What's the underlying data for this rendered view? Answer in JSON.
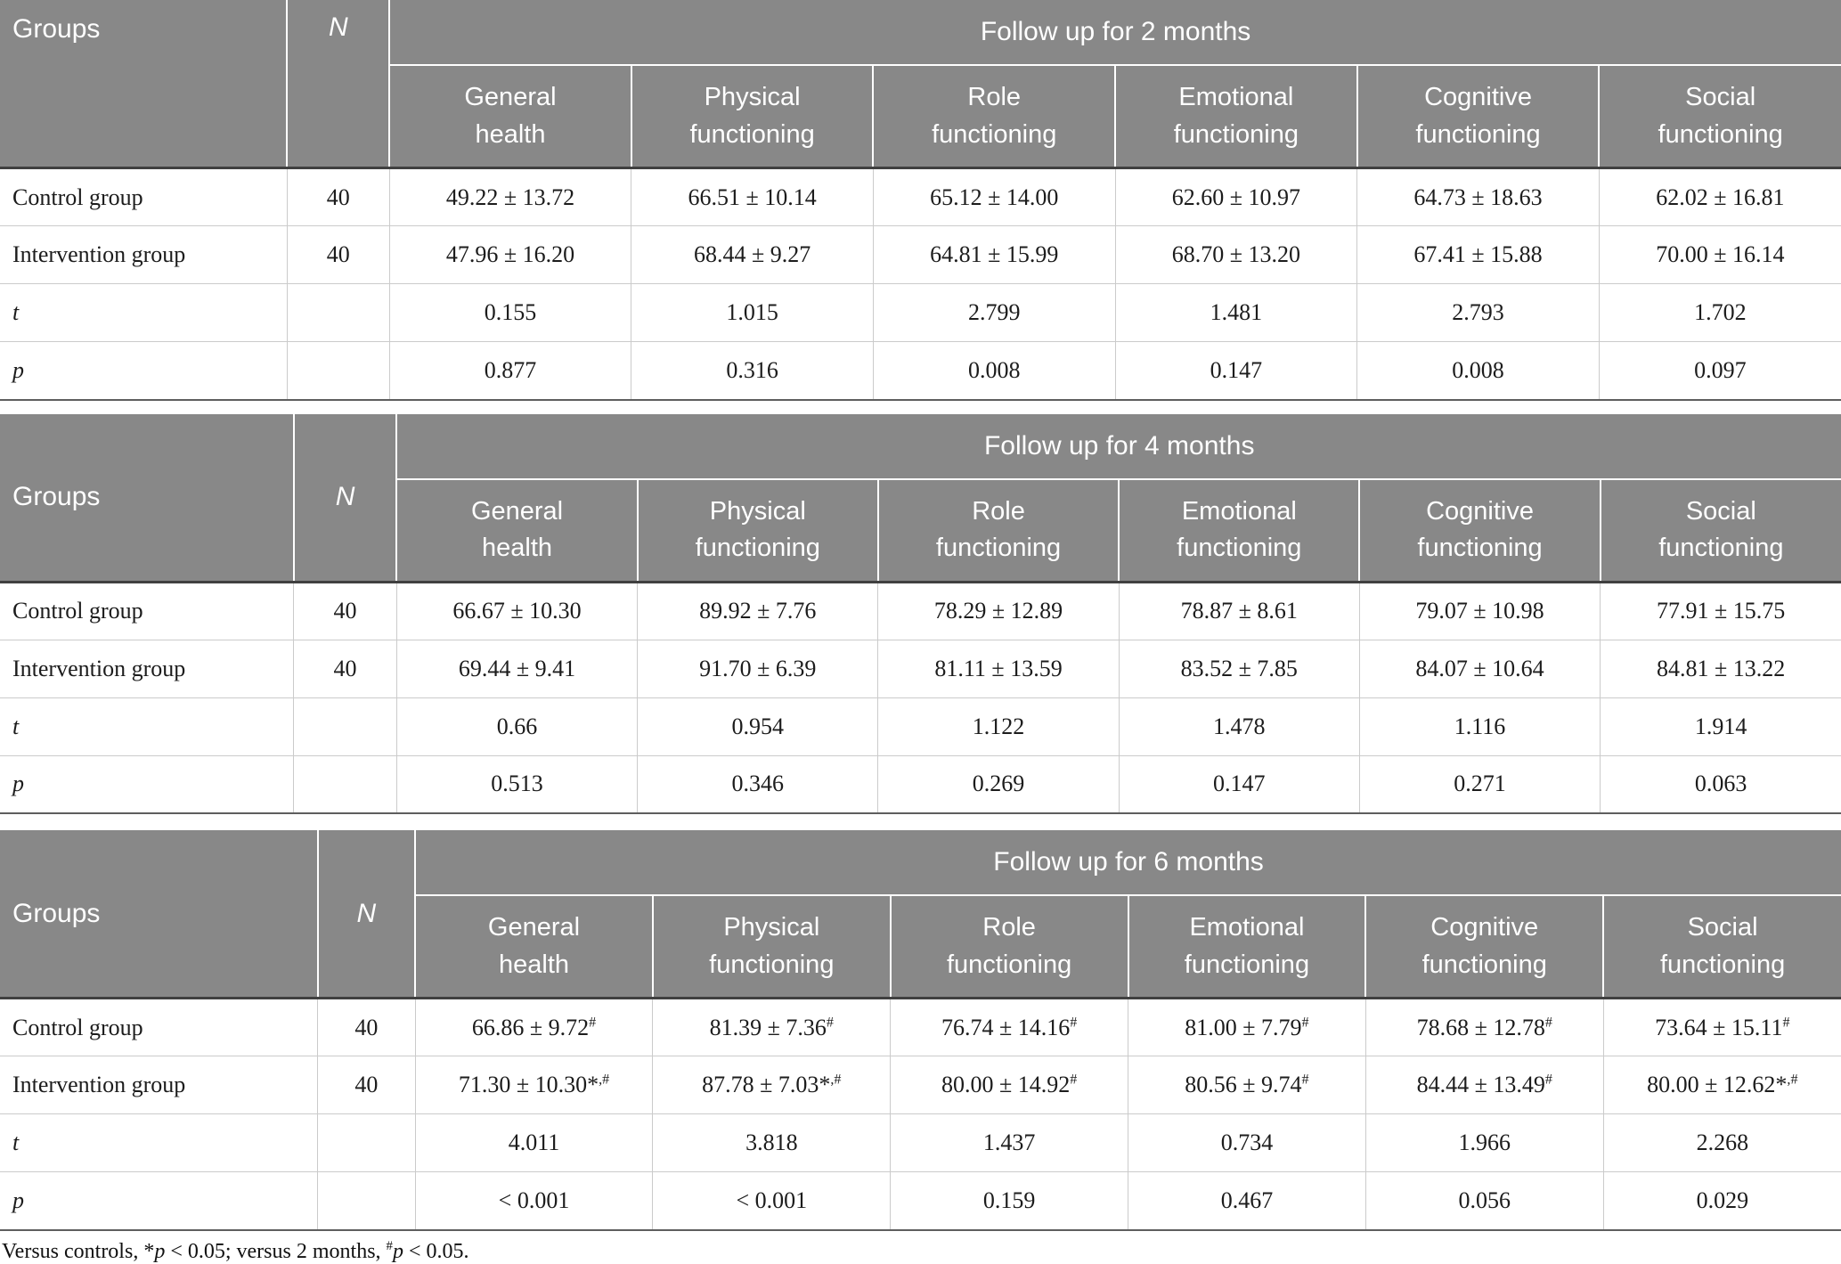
{
  "colors": {
    "header_bg": "#888888",
    "header_text": "#ffffff",
    "body_text": "#1c1c1c",
    "light_line": "#cbcbcb",
    "header_underline": "#404040",
    "table_bottom_line": "#5e5e5e"
  },
  "measure_columns": [
    "General health",
    "Physical functioning",
    "Role functioning",
    "Emotional functioning",
    "Cognitive functioning",
    "Social functioning"
  ],
  "tables": [
    {
      "id": "followup-2-months",
      "groups_label": "Groups",
      "n_label": "N",
      "title": "Follow up for 2 months",
      "rows": [
        {
          "label": "Control group",
          "italic": false,
          "n": "40",
          "cells": [
            {
              "v": "49.22 ± 13.72",
              "s": ""
            },
            {
              "v": "66.51 ± 10.14",
              "s": ""
            },
            {
              "v": "65.12 ± 14.00",
              "s": ""
            },
            {
              "v": "62.60 ± 10.97",
              "s": ""
            },
            {
              "v": "64.73 ± 18.63",
              "s": ""
            },
            {
              "v": "62.02 ± 16.81",
              "s": ""
            }
          ]
        },
        {
          "label": "Intervention group",
          "italic": false,
          "n": "40",
          "cells": [
            {
              "v": "47.96 ± 16.20",
              "s": ""
            },
            {
              "v": "68.44 ± 9.27",
              "s": ""
            },
            {
              "v": "64.81 ± 15.99",
              "s": ""
            },
            {
              "v": "68.70 ± 13.20",
              "s": ""
            },
            {
              "v": "67.41 ± 15.88",
              "s": ""
            },
            {
              "v": "70.00 ± 16.14",
              "s": ""
            }
          ]
        },
        {
          "label": "t",
          "italic": true,
          "n": "",
          "cells": [
            {
              "v": "0.155",
              "s": ""
            },
            {
              "v": "1.015",
              "s": ""
            },
            {
              "v": "2.799",
              "s": ""
            },
            {
              "v": "1.481",
              "s": ""
            },
            {
              "v": "2.793",
              "s": ""
            },
            {
              "v": "1.702",
              "s": ""
            }
          ]
        },
        {
          "label": "p",
          "italic": true,
          "n": "",
          "cells": [
            {
              "v": "0.877",
              "s": ""
            },
            {
              "v": "0.316",
              "s": ""
            },
            {
              "v": "0.008",
              "s": ""
            },
            {
              "v": "0.147",
              "s": ""
            },
            {
              "v": "0.008",
              "s": ""
            },
            {
              "v": "0.097",
              "s": ""
            }
          ]
        }
      ]
    },
    {
      "id": "followup-4-months",
      "groups_label": "Groups",
      "n_label": "N",
      "title": "Follow up for 4 months",
      "rows": [
        {
          "label": "Control group",
          "italic": false,
          "n": "40",
          "cells": [
            {
              "v": "66.67 ± 10.30",
              "s": ""
            },
            {
              "v": "89.92 ± 7.76",
              "s": ""
            },
            {
              "v": "78.29 ± 12.89",
              "s": ""
            },
            {
              "v": "78.87 ± 8.61",
              "s": ""
            },
            {
              "v": "79.07 ± 10.98",
              "s": ""
            },
            {
              "v": "77.91 ± 15.75",
              "s": ""
            }
          ]
        },
        {
          "label": "Intervention group",
          "italic": false,
          "n": "40",
          "cells": [
            {
              "v": "69.44 ± 9.41",
              "s": ""
            },
            {
              "v": "91.70 ± 6.39",
              "s": ""
            },
            {
              "v": "81.11 ± 13.59",
              "s": ""
            },
            {
              "v": "83.52 ± 7.85",
              "s": ""
            },
            {
              "v": "84.07 ± 10.64",
              "s": ""
            },
            {
              "v": "84.81 ± 13.22",
              "s": ""
            }
          ]
        },
        {
          "label": "t",
          "italic": true,
          "n": "",
          "cells": [
            {
              "v": "0.66",
              "s": ""
            },
            {
              "v": "0.954",
              "s": ""
            },
            {
              "v": "1.122",
              "s": ""
            },
            {
              "v": "1.478",
              "s": ""
            },
            {
              "v": "1.116",
              "s": ""
            },
            {
              "v": "1.914",
              "s": ""
            }
          ]
        },
        {
          "label": "p",
          "italic": true,
          "n": "",
          "cells": [
            {
              "v": "0.513",
              "s": ""
            },
            {
              "v": "0.346",
              "s": ""
            },
            {
              "v": "0.269",
              "s": ""
            },
            {
              "v": "0.147",
              "s": ""
            },
            {
              "v": "0.271",
              "s": ""
            },
            {
              "v": "0.063",
              "s": ""
            }
          ]
        }
      ]
    },
    {
      "id": "followup-6-months",
      "groups_label": "Groups",
      "n_label": "N",
      "title": "Follow up for 6 months",
      "rows": [
        {
          "label": "Control group",
          "italic": false,
          "n": "40",
          "cells": [
            {
              "v": "66.86 ± 9.72",
              "s": "#"
            },
            {
              "v": "81.39 ± 7.36",
              "s": "#"
            },
            {
              "v": "76.74 ± 14.16",
              "s": "#"
            },
            {
              "v": "81.00 ± 7.79",
              "s": "#"
            },
            {
              "v": "78.68 ± 12.78",
              "s": "#"
            },
            {
              "v": "73.64 ± 15.11",
              "s": "#"
            }
          ]
        },
        {
          "label": "Intervention group",
          "italic": false,
          "n": "40",
          "cells": [
            {
              "v": "71.30 ± 10.30*",
              "s": ",#"
            },
            {
              "v": "87.78 ± 7.03*",
              "s": ",#"
            },
            {
              "v": "80.00 ± 14.92",
              "s": "#"
            },
            {
              "v": "80.56 ± 9.74",
              "s": "#"
            },
            {
              "v": "84.44 ± 13.49",
              "s": "#"
            },
            {
              "v": "80.00 ± 12.62*",
              "s": ",#"
            }
          ]
        },
        {
          "label": "t",
          "italic": true,
          "n": "",
          "cells": [
            {
              "v": "4.011",
              "s": ""
            },
            {
              "v": "3.818",
              "s": ""
            },
            {
              "v": "1.437",
              "s": ""
            },
            {
              "v": "0.734",
              "s": ""
            },
            {
              "v": "1.966",
              "s": ""
            },
            {
              "v": "2.268",
              "s": ""
            }
          ]
        },
        {
          "label": "p",
          "italic": true,
          "n": "",
          "cells": [
            {
              "v": "< 0.001",
              "s": ""
            },
            {
              "v": "< 0.001",
              "s": ""
            },
            {
              "v": "0.159",
              "s": ""
            },
            {
              "v": "0.467",
              "s": ""
            },
            {
              "v": "0.056",
              "s": ""
            },
            {
              "v": "0.029",
              "s": ""
            }
          ]
        }
      ]
    }
  ],
  "footnote": {
    "parts": [
      {
        "t": "Versus controls, *",
        "style": ""
      },
      {
        "t": "p",
        "style": "i"
      },
      {
        "t": " < 0.05; versus 2 months, ",
        "style": ""
      },
      {
        "t": "#",
        "style": "sup"
      },
      {
        "t": "p",
        "style": "i"
      },
      {
        "t": " < 0.05.",
        "style": ""
      }
    ]
  }
}
